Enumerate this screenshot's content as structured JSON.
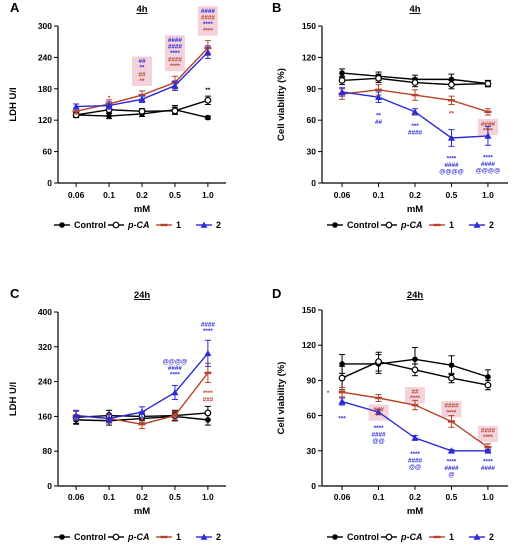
{
  "colors": {
    "control": "#000000",
    "pca": "#000000",
    "c1": "#b5432a",
    "c2": "#2a2ad8",
    "hl": "#f4d2dc"
  },
  "x_tick_labels": [
    "0.06",
    "0.1",
    "0.2",
    "0.5",
    "1.0"
  ],
  "x_label": "mM",
  "legend": [
    {
      "key": "control",
      "label": "Control",
      "marker": "filled-circle"
    },
    {
      "key": "pca",
      "label": "p-CA",
      "marker": "open-circle"
    },
    {
      "key": "c1",
      "label": "1",
      "marker": "dash"
    },
    {
      "key": "c2",
      "label": "2",
      "marker": "triangle"
    }
  ],
  "chart_data": [
    {
      "panel": "A",
      "title": "4h",
      "type": "line",
      "ylabel": "LDH U/l",
      "ylim": [
        0,
        300
      ],
      "yticks": [
        0,
        60,
        120,
        180,
        240,
        300
      ],
      "x": [
        "0.06",
        "0.1",
        "0.2",
        "0.5",
        "1.0"
      ],
      "series": [
        {
          "key": "control",
          "name": "Control",
          "values": [
            130,
            128,
            132,
            140,
            125
          ],
          "err": [
            4,
            5,
            5,
            8,
            3
          ]
        },
        {
          "key": "pca",
          "name": "p-CA",
          "values": [
            130,
            140,
            137,
            138,
            158
          ],
          "err": [
            5,
            6,
            5,
            7,
            8
          ]
        },
        {
          "key": "c1",
          "name": "1",
          "values": [
            137,
            151,
            168,
            192,
            258
          ],
          "err": [
            5,
            8,
            8,
            12,
            14
          ]
        },
        {
          "key": "c2",
          "name": "2",
          "values": [
            146,
            148,
            160,
            186,
            250
          ],
          "err": [
            5,
            7,
            6,
            9,
            12
          ]
        }
      ],
      "annotations": [
        {
          "xi": 1,
          "y": 128,
          "dy": -16,
          "lines": [
            {
              "t": "*",
              "c": "c1"
            }
          ],
          "hl": false
        },
        {
          "xi": 2,
          "y": 176,
          "dy": -8,
          "lines": [
            {
              "t": "##",
              "c": "c2"
            },
            {
              "t": "**",
              "c": "c2"
            },
            {
              "t": "##",
              "c": "c1"
            },
            {
              "t": "**",
              "c": "c1"
            }
          ],
          "hl": true
        },
        {
          "xi": 3,
          "y": 204,
          "dy": -8,
          "lines": [
            {
              "t": "####",
              "c": "c2"
            },
            {
              "t": "####",
              "c": "c2"
            },
            {
              "t": "****",
              "c": "c2"
            },
            {
              "t": "####",
              "c": "c1"
            },
            {
              "t": "****",
              "c": "c1"
            }
          ],
          "hl": true
        },
        {
          "xi": 4,
          "y": 272,
          "dy": -8,
          "lines": [
            {
              "t": "####",
              "c": "c2"
            },
            {
              "t": "####",
              "c": "c1"
            },
            {
              "t": "****",
              "c": "c2"
            },
            {
              "t": "****",
              "c": "c1"
            }
          ],
          "hl": true
        },
        {
          "xi": 4,
          "y": 166,
          "dy": -4,
          "lines": [
            {
              "t": "**",
              "c": "control"
            }
          ],
          "hl": false
        }
      ]
    },
    {
      "panel": "B",
      "title": "4h",
      "type": "line",
      "ylabel": "Cell viability (%)",
      "ylim": [
        0,
        150
      ],
      "yticks": [
        0,
        30,
        60,
        90,
        120,
        150
      ],
      "x": [
        "0.06",
        "0.1",
        "0.2",
        "0.5",
        "1.0"
      ],
      "series": [
        {
          "key": "control",
          "name": "Control",
          "values": [
            105,
            102,
            99,
            99,
            95
          ],
          "err": [
            4,
            4,
            4,
            5,
            3
          ]
        },
        {
          "key": "pca",
          "name": "p-CA",
          "values": [
            98,
            100,
            96,
            94,
            95
          ],
          "err": [
            4,
            4,
            4,
            4,
            3
          ]
        },
        {
          "key": "c1",
          "name": "1",
          "values": [
            85,
            89,
            84,
            79,
            68
          ],
          "err": [
            5,
            5,
            5,
            4,
            3
          ]
        },
        {
          "key": "c2",
          "name": "2",
          "values": [
            87,
            82,
            68,
            43,
            45
          ],
          "err": [
            4,
            5,
            3,
            8,
            9
          ]
        }
      ],
      "annotations": [
        {
          "xi": 2,
          "y": 72,
          "dy": 6,
          "lines": [
            {
              "t": "*",
              "c": "c1"
            }
          ],
          "hl": false
        },
        {
          "xi": 3,
          "y": 74,
          "dy": 6,
          "lines": [
            {
              "t": "**",
              "c": "c1"
            }
          ],
          "hl": false
        },
        {
          "xi": 4,
          "y": 64,
          "dy": 6,
          "lines": [
            {
              "t": "####",
              "c": "c1"
            },
            {
              "t": "****",
              "c": "c1"
            }
          ],
          "hl": true
        },
        {
          "xi": 1,
          "y": 74,
          "dy": 8,
          "lines": [
            {
              "t": "**",
              "c": "c2"
            },
            {
              "t": "##",
              "c": "c2"
            }
          ],
          "hl": false
        },
        {
          "xi": 2,
          "y": 64,
          "dy": 8,
          "lines": [
            {
              "t": "***",
              "c": "c2"
            },
            {
              "t": "####",
              "c": "c2"
            }
          ],
          "hl": false
        },
        {
          "xi": 3,
          "y": 33,
          "dy": 8,
          "lines": [
            {
              "t": "****",
              "c": "c2"
            },
            {
              "t": "####",
              "c": "c2"
            },
            {
              "t": "@@@@",
              "c": "c2"
            }
          ],
          "hl": false
        },
        {
          "xi": 4,
          "y": 34,
          "dy": 8,
          "lines": [
            {
              "t": "****",
              "c": "c2"
            },
            {
              "t": "####",
              "c": "c2"
            },
            {
              "t": "@@@@",
              "c": "c2"
            }
          ],
          "hl": false
        }
      ]
    },
    {
      "panel": "C",
      "title": "24h",
      "type": "line",
      "ylabel": "LDH U/l",
      "ylim": [
        0,
        400
      ],
      "yticks": [
        0,
        80,
        160,
        240,
        320,
        400
      ],
      "x": [
        "0.06",
        "0.1",
        "0.2",
        "0.5",
        "1.0"
      ],
      "series": [
        {
          "key": "control",
          "name": "Control",
          "values": [
            152,
            150,
            155,
            160,
            152
          ],
          "err": [
            10,
            10,
            10,
            10,
            12
          ]
        },
        {
          "key": "pca",
          "name": "p-CA",
          "values": [
            158,
            162,
            160,
            162,
            168
          ],
          "err": [
            14,
            12,
            10,
            12,
            15
          ]
        },
        {
          "key": "c1",
          "name": "1",
          "values": [
            162,
            155,
            142,
            162,
            260
          ],
          "err": [
            10,
            8,
            10,
            10,
            22
          ]
        },
        {
          "key": "c2",
          "name": "2",
          "values": [
            162,
            155,
            170,
            215,
            305
          ],
          "err": [
            12,
            10,
            12,
            16,
            30
          ]
        }
      ],
      "annotations": [
        {
          "xi": 3,
          "y": 233,
          "dy": -8,
          "lines": [
            {
              "t": "@@@@",
              "c": "c2"
            },
            {
              "t": "####",
              "c": "c2"
            },
            {
              "t": "****",
              "c": "c2"
            }
          ],
          "hl": false
        },
        {
          "xi": 4,
          "y": 338,
          "dy": -6,
          "lines": [
            {
              "t": "####",
              "c": "c2"
            },
            {
              "t": "****",
              "c": "c2"
            }
          ],
          "hl": false
        },
        {
          "xi": 4,
          "y": 232,
          "dy": 6,
          "lines": [
            {
              "t": "****",
              "c": "c1"
            },
            {
              "t": "###",
              "c": "c1"
            }
          ],
          "hl": false
        }
      ]
    },
    {
      "panel": "D",
      "title": "24h",
      "type": "line",
      "ylabel": "Cell viability (%)",
      "ylim": [
        0,
        150
      ],
      "yticks": [
        0,
        30,
        60,
        90,
        120,
        150
      ],
      "x": [
        "0.06",
        "0.1",
        "0.2",
        "0.5",
        "1.0"
      ],
      "series": [
        {
          "key": "control",
          "name": "Control",
          "values": [
            104,
            104,
            108,
            103,
            93
          ],
          "err": [
            8,
            8,
            10,
            8,
            6
          ]
        },
        {
          "key": "pca",
          "name": "p-CA",
          "values": [
            92,
            106,
            99,
            92,
            86
          ],
          "err": [
            10,
            8,
            5,
            4,
            4
          ]
        },
        {
          "key": "c1",
          "name": "1",
          "values": [
            80,
            75,
            69,
            55,
            33
          ],
          "err": [
            4,
            3,
            4,
            5,
            3
          ]
        },
        {
          "key": "c2",
          "name": "2",
          "values": [
            72,
            63,
            41,
            30,
            30
          ],
          "err": [
            3,
            2,
            2,
            1,
            1
          ]
        }
      ],
      "annotations": [
        {
          "xi": 0,
          "y": 81,
          "dx": -14,
          "dy": 0,
          "lines": [
            {
              "t": "*",
              "c": "c1"
            }
          ],
          "hl": false
        },
        {
          "xi": 0,
          "y": 66,
          "dy": 8,
          "lines": [
            {
              "t": "***",
              "c": "c2"
            }
          ],
          "hl": false
        },
        {
          "xi": 1,
          "y": 72,
          "dy": 6,
          "lines": [
            {
              "t": "###",
              "c": "c1"
            },
            {
              "t": "**",
              "c": "c1"
            }
          ],
          "hl": true
        },
        {
          "xi": 1,
          "y": 58,
          "dy": 8,
          "lines": [
            {
              "t": "****",
              "c": "c2"
            },
            {
              "t": "####",
              "c": "c2"
            },
            {
              "t": "@@",
              "c": "c2"
            }
          ],
          "hl": false
        },
        {
          "xi": 2,
          "y": 68,
          "dy": -6,
          "lines": [
            {
              "t": "##",
              "c": "c1"
            },
            {
              "t": "****",
              "c": "c1"
            }
          ],
          "hl": true
        },
        {
          "xi": 2,
          "y": 36,
          "dy": 8,
          "lines": [
            {
              "t": "****",
              "c": "c2"
            },
            {
              "t": "####",
              "c": "c2"
            },
            {
              "t": "@@",
              "c": "c2"
            }
          ],
          "hl": false
        },
        {
          "xi": 3,
          "y": 56,
          "dy": -6,
          "lines": [
            {
              "t": "####",
              "c": "c1"
            },
            {
              "t": "****",
              "c": "c1"
            }
          ],
          "hl": true
        },
        {
          "xi": 3,
          "y": 26,
          "dy": 4,
          "lines": [
            {
              "t": "****",
              "c": "c2"
            },
            {
              "t": "####",
              "c": "c2"
            },
            {
              "t": "@",
              "c": "c2"
            }
          ],
          "hl": false
        },
        {
          "xi": 4,
          "y": 35,
          "dy": -6,
          "lines": [
            {
              "t": "####",
              "c": "c1"
            },
            {
              "t": "****",
              "c": "c1"
            }
          ],
          "hl": true
        },
        {
          "xi": 4,
          "y": 26,
          "dy": 4,
          "lines": [
            {
              "t": "****",
              "c": "c2"
            },
            {
              "t": "####",
              "c": "c2"
            }
          ],
          "hl": false
        }
      ]
    }
  ]
}
